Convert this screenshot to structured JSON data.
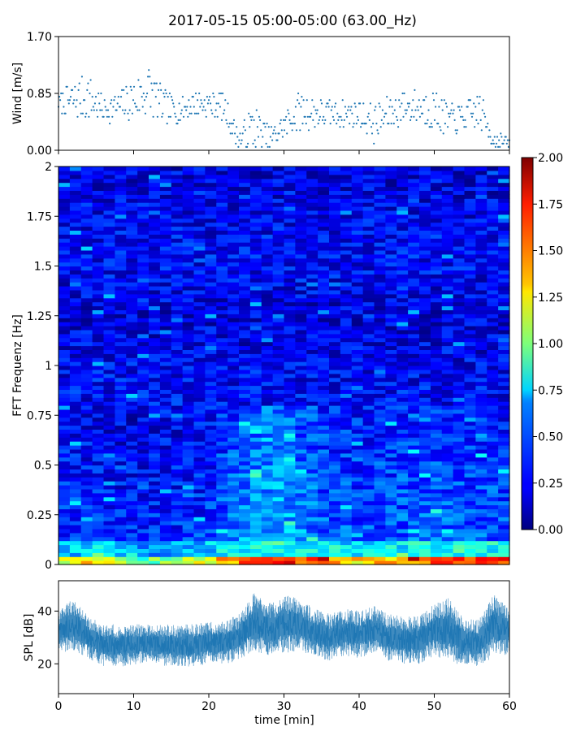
{
  "title": "2017-05-15 05:00-05:00 (63.00_Hz)",
  "chart_data": [
    {
      "type": "scatter",
      "name": "wind",
      "ylabel": "Wind [m/s]",
      "xlim": [
        0,
        60
      ],
      "ylim": [
        0.0,
        1.7
      ],
      "yticks": [
        "0.00",
        "0.85",
        "1.70"
      ],
      "x_tick_labels_shown": false,
      "marker_color": "#1f77b4",
      "x": [
        0,
        2,
        4,
        6,
        8,
        10,
        12,
        14,
        16,
        18,
        20,
        22,
        24,
        26,
        28,
        30,
        32,
        34,
        36,
        38,
        40,
        42,
        44,
        46,
        48,
        50,
        52,
        54,
        56,
        58,
        60
      ],
      "y": [
        0.7,
        0.75,
        0.8,
        0.6,
        0.65,
        0.75,
        0.9,
        0.65,
        0.6,
        0.7,
        0.7,
        0.65,
        0.15,
        0.35,
        0.15,
        0.35,
        0.6,
        0.55,
        0.55,
        0.55,
        0.55,
        0.4,
        0.55,
        0.65,
        0.65,
        0.6,
        0.45,
        0.5,
        0.6,
        0.15,
        0.1
      ],
      "y_spread": [
        0.12,
        0.3,
        0.35,
        0.2,
        0.2,
        0.35,
        0.4,
        0.25,
        0.2,
        0.2,
        0.2,
        0.2,
        0.15,
        0.35,
        0.2,
        0.2,
        0.3,
        0.25,
        0.2,
        0.2,
        0.2,
        0.3,
        0.25,
        0.25,
        0.25,
        0.3,
        0.25,
        0.2,
        0.3,
        0.15,
        0.08
      ]
    },
    {
      "type": "heatmap",
      "name": "spectrogram",
      "ylabel": "FFT Frequenz [Hz]",
      "xlim": [
        0,
        60
      ],
      "ylim": [
        0,
        2
      ],
      "yticks": [
        "0",
        "0.25",
        "0.5",
        "0.75",
        "1",
        "1.25",
        "1.5",
        "1.75",
        "2"
      ],
      "colormap": "jet",
      "colorbar": {
        "range": [
          0.0,
          2.0
        ],
        "ticks": [
          "0.00",
          "0.25",
          "0.50",
          "0.75",
          "1.00",
          "1.25",
          "1.50",
          "1.75",
          "2.00"
        ]
      },
      "low_freq_level_profile": {
        "x": [
          0,
          5,
          10,
          15,
          20,
          25,
          30,
          35,
          40,
          45,
          50,
          55,
          60
        ],
        "level": [
          1.1,
          1.3,
          0.9,
          1.0,
          1.2,
          1.6,
          1.7,
          1.5,
          1.3,
          1.4,
          1.6,
          1.7,
          1.6
        ]
      },
      "mid_freq_level_profile": {
        "x": [
          0,
          10,
          20,
          25,
          30,
          35,
          40,
          50,
          60
        ],
        "level": [
          0.35,
          0.3,
          0.35,
          0.55,
          0.6,
          0.45,
          0.4,
          0.45,
          0.4
        ]
      }
    },
    {
      "type": "area",
      "name": "spl",
      "ylabel": "SPL [dB]",
      "xlabel": "time [min]",
      "xlim": [
        0,
        60
      ],
      "ylim": [
        8.7,
        51.5
      ],
      "yticks": [
        "20",
        "40"
      ],
      "xticks": [
        "0",
        "10",
        "20",
        "30",
        "40",
        "50",
        "60"
      ],
      "color": "#1f77b4",
      "x": [
        0,
        2,
        4,
        6,
        8,
        10,
        12,
        14,
        16,
        18,
        20,
        22,
        24,
        26,
        28,
        30,
        32,
        34,
        36,
        38,
        40,
        42,
        44,
        46,
        48,
        50,
        52,
        54,
        56,
        58,
        60
      ],
      "mean": [
        32,
        35,
        30,
        27,
        27,
        27,
        28,
        27,
        27,
        27,
        28,
        28,
        30,
        36,
        33,
        35,
        35,
        32,
        30,
        32,
        31,
        33,
        30,
        29,
        29,
        33,
        33,
        28,
        28,
        35,
        32
      ],
      "spread": [
        8,
        10,
        8,
        8,
        8,
        8,
        7,
        8,
        8,
        8,
        8,
        8,
        9,
        11,
        10,
        11,
        10,
        9,
        9,
        9,
        9,
        9,
        9,
        9,
        9,
        10,
        12,
        9,
        9,
        12,
        9
      ]
    }
  ]
}
